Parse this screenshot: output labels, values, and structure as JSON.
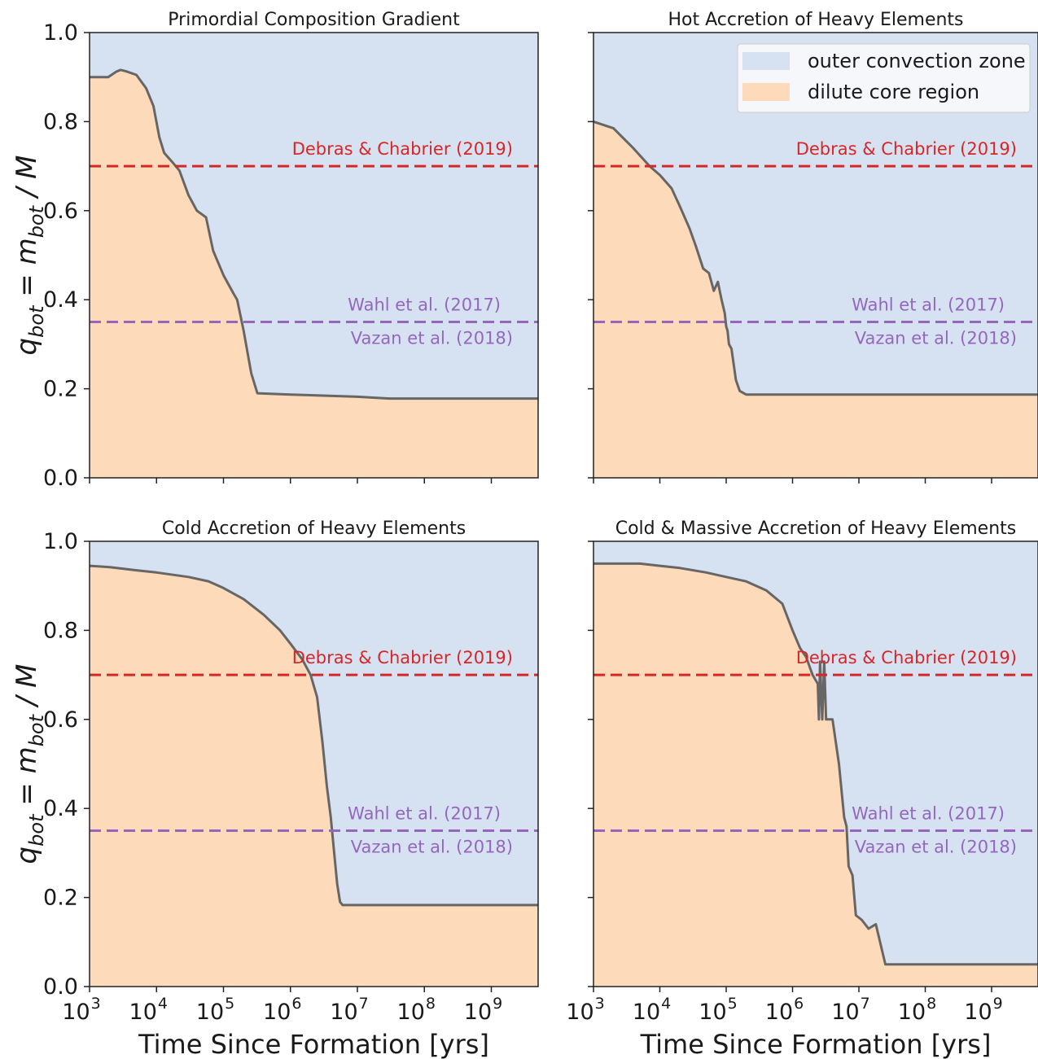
{
  "colors": {
    "outer": "#d6e2f2",
    "core": "#fddbba",
    "boundary": "#666666",
    "debras": "#d62728",
    "wahl": "#9467bd",
    "axis": "#222222"
  },
  "legend": {
    "items": [
      {
        "label": "outer convection zone",
        "color": "#d6e2f2"
      },
      {
        "label": "dilute core region",
        "color": "#fddbba"
      }
    ],
    "placement": "top-right of top-right panel"
  },
  "chart_data": [
    {
      "type": "area",
      "title": "Primordial Composition Gradient",
      "xlabel": "",
      "ylabel": "q_bot = m_bot / M",
      "xscale": "log",
      "xlim": [
        1000,
        5000000000
      ],
      "ylim": [
        0,
        1
      ],
      "series": [
        {
          "name": "outer convection zone",
          "region": "above boundary"
        },
        {
          "name": "dilute core region",
          "region": "below boundary"
        }
      ],
      "boundary": {
        "x": [
          1000,
          1900,
          2500,
          2900,
          3500,
          5000,
          7000,
          9000,
          11000,
          13000,
          17000,
          22000,
          30000,
          40000,
          55000,
          70000,
          100000,
          140000,
          160000,
          200000,
          220000,
          260000,
          320000,
          1000000,
          10000000,
          30000000,
          100000000,
          1000000000,
          5000000000
        ],
        "y": [
          0.9,
          0.9,
          0.912,
          0.916,
          0.913,
          0.905,
          0.875,
          0.835,
          0.765,
          0.73,
          0.71,
          0.69,
          0.635,
          0.6,
          0.585,
          0.51,
          0.455,
          0.415,
          0.4,
          0.33,
          0.295,
          0.235,
          0.19,
          0.187,
          0.182,
          0.178,
          0.178,
          0.178,
          0.178
        ]
      },
      "reference_lines": [
        {
          "y": 0.7,
          "label": "Debras & Chabrier (2019)",
          "color": "#d62728"
        },
        {
          "y": 0.35,
          "label_above": "Wahl et al. (2017)",
          "label_below": "Vazan et al. (2018)",
          "color": "#9467bd"
        }
      ]
    },
    {
      "type": "area",
      "title": "Hot Accretion of Heavy Elements",
      "xlabel": "",
      "ylabel": "",
      "xscale": "log",
      "xlim": [
        1000,
        5000000000
      ],
      "ylim": [
        0,
        1
      ],
      "series": [
        {
          "name": "outer convection zone",
          "region": "above boundary"
        },
        {
          "name": "dilute core region",
          "region": "below boundary"
        }
      ],
      "boundary": {
        "x": [
          1000,
          2000,
          4000,
          7000,
          10000,
          15000,
          20000,
          28000,
          35000,
          45000,
          55000,
          65000,
          75000,
          85000,
          95000,
          100000,
          105000,
          110000,
          120000,
          140000,
          160000,
          200000,
          1000000,
          10000000,
          100000000,
          5000000000
        ],
        "y": [
          0.8,
          0.785,
          0.74,
          0.7,
          0.68,
          0.65,
          0.61,
          0.56,
          0.52,
          0.47,
          0.46,
          0.42,
          0.44,
          0.4,
          0.37,
          0.34,
          0.33,
          0.3,
          0.29,
          0.22,
          0.195,
          0.187,
          0.187,
          0.187,
          0.187,
          0.187
        ]
      },
      "reference_lines": [
        {
          "y": 0.7,
          "label": "Debras & Chabrier (2019)",
          "color": "#d62728"
        },
        {
          "y": 0.35,
          "label_above": "Wahl et al. (2017)",
          "label_below": "Vazan et al. (2018)",
          "color": "#9467bd"
        }
      ]
    },
    {
      "type": "area",
      "title": "Cold Accretion of Heavy Elements",
      "xlabel": "Time Since Formation [yrs]",
      "ylabel": "q_bot = m_bot / M",
      "xscale": "log",
      "xlim": [
        1000,
        5000000000
      ],
      "ylim": [
        0,
        1
      ],
      "series": [
        {
          "name": "outer convection zone",
          "region": "above boundary"
        },
        {
          "name": "dilute core region",
          "region": "below boundary"
        }
      ],
      "boundary": {
        "x": [
          1000,
          2000,
          5000,
          10000,
          30000,
          60000,
          100000,
          200000,
          400000,
          700000,
          1000000,
          1500000,
          2000000,
          2500000,
          3000000,
          3500000,
          4000000,
          4500000,
          5000000,
          5500000,
          6000000,
          10000000,
          100000000,
          1000000000,
          5000000000
        ],
        "y": [
          0.945,
          0.942,
          0.935,
          0.93,
          0.92,
          0.91,
          0.895,
          0.87,
          0.835,
          0.8,
          0.77,
          0.735,
          0.7,
          0.65,
          0.55,
          0.45,
          0.38,
          0.3,
          0.23,
          0.19,
          0.183,
          0.183,
          0.183,
          0.183,
          0.183
        ]
      },
      "reference_lines": [
        {
          "y": 0.7,
          "label": "Debras & Chabrier (2019)",
          "color": "#d62728"
        },
        {
          "y": 0.35,
          "label_above": "Wahl et al. (2017)",
          "label_below": "Vazan et al. (2018)",
          "color": "#9467bd"
        }
      ]
    },
    {
      "type": "area",
      "title": "Cold & Massive Accretion of Heavy Elements",
      "xlabel": "Time Since Formation [yrs]",
      "ylabel": "",
      "xscale": "log",
      "xlim": [
        1000,
        5000000000
      ],
      "ylim": [
        0,
        1
      ],
      "series": [
        {
          "name": "outer convection zone",
          "region": "above boundary"
        },
        {
          "name": "dilute core region",
          "region": "below boundary"
        }
      ],
      "boundary": {
        "x": [
          1000,
          5000,
          10000,
          20000,
          50000,
          100000,
          200000,
          400000,
          700000,
          1000000,
          1300000,
          1600000,
          2000000,
          2400000,
          2500000,
          2600000,
          2800000,
          3000000,
          3200000,
          3500000,
          4000000,
          5000000,
          6000000,
          6500000,
          7000000,
          8000000,
          9000000,
          11000000,
          14000000,
          18000000,
          25000000,
          100000000,
          5000000000
        ],
        "y": [
          0.95,
          0.95,
          0.945,
          0.94,
          0.93,
          0.92,
          0.91,
          0.89,
          0.86,
          0.8,
          0.76,
          0.74,
          0.7,
          0.68,
          0.6,
          0.73,
          0.6,
          0.73,
          0.6,
          0.6,
          0.6,
          0.5,
          0.38,
          0.36,
          0.27,
          0.25,
          0.16,
          0.15,
          0.13,
          0.14,
          0.05,
          0.05,
          0.05
        ]
      },
      "reference_lines": [
        {
          "y": 0.7,
          "label": "Debras & Chabrier (2019)",
          "color": "#d62728"
        },
        {
          "y": 0.35,
          "label_above": "Wahl et al. (2017)",
          "label_below": "Vazan et al. (2018)",
          "color": "#9467bd"
        }
      ]
    }
  ],
  "axes_text": {
    "ylabel_prefix": "q",
    "ylabel_sub": "bot",
    "ylabel_mid": " = m",
    "ylabel_sub2": "bot",
    "ylabel_suffix": " / M",
    "yticks": [
      "0.0",
      "0.2",
      "0.4",
      "0.6",
      "0.8",
      "1.0"
    ],
    "xtick_base": "10",
    "xtick_exps": [
      "3",
      "4",
      "5",
      "6",
      "7",
      "8",
      "9"
    ]
  }
}
